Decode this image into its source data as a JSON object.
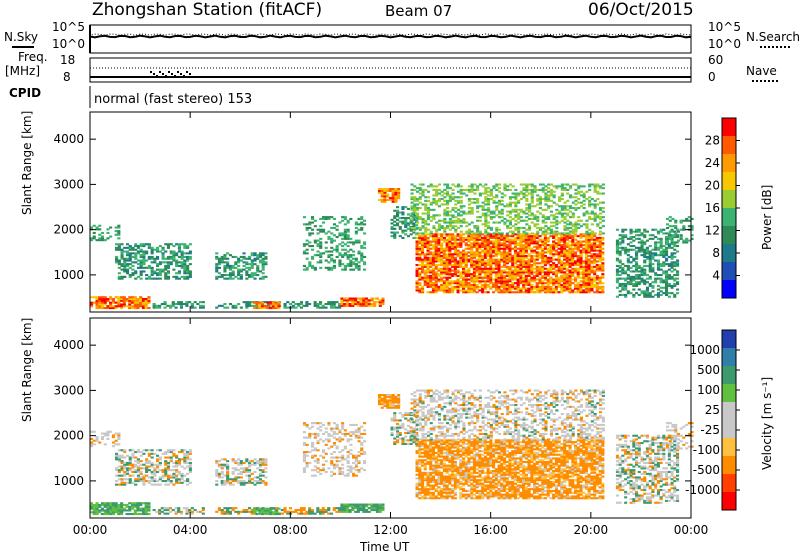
{
  "header": {
    "station": "Zhongshan Station (fitACF)",
    "beam": "Beam 07",
    "date": "06/Oct/2015"
  },
  "top_panels": {
    "nsky_label": "N.Sky",
    "nsky_ticks": [
      "10^5",
      "10^0"
    ],
    "nsearch_label": "N.Search",
    "nsearch_ticks": [
      "10^5",
      "10^0"
    ],
    "freq_label": "Freq.",
    "freq_unit": "[MHz]",
    "freq_ticks": [
      "18",
      "8"
    ],
    "nave_label": "Nave",
    "nave_ticks": [
      "60",
      "0"
    ],
    "cpid_label": "CPID",
    "cpid_text": "normal (fast stereo) 153"
  },
  "chart_data": [
    {
      "type": "heatmap",
      "panel": "power",
      "xlabel": "Time UT",
      "ylabel": "Slant Range [km]",
      "colorbar_label": "Power [dB]",
      "colorbar_ticks": [
        "28",
        "24",
        "20",
        "16",
        "12",
        "8",
        "4"
      ],
      "colorbar_colors": [
        "#ff0000",
        "#ff5a00",
        "#ff9a00",
        "#f7c800",
        "#9acd32",
        "#3cb371",
        "#2e8b57",
        "#1e7a8a",
        "#1f4fb4",
        "#0000ff"
      ],
      "x_ticks": [
        "00:00",
        "04:00",
        "08:00",
        "12:00",
        "16:00",
        "20:00",
        "00:00"
      ],
      "y_ticks": [
        "4000",
        "3000",
        "2000",
        "1000"
      ],
      "ylim": [
        180,
        4600
      ],
      "xlim_hours": [
        0,
        24
      ]
    },
    {
      "type": "heatmap",
      "panel": "velocity",
      "xlabel": "Time UT",
      "ylabel": "Slant Range [km]",
      "colorbar_label": "Velocity [m s⁻¹]",
      "colorbar_ticks": [
        "1000",
        "500",
        "100",
        "25",
        "-25",
        "-100",
        "-500",
        "-1000"
      ],
      "colorbar_colors": [
        "#2040b0",
        "#2f7fa8",
        "#3c9a6c",
        "#60c040",
        "#c8c8c8",
        "#c8c8c8",
        "#ffc040",
        "#ff8c00",
        "#ff4000",
        "#ff0000"
      ],
      "x_ticks": [
        "00:00",
        "04:00",
        "08:00",
        "12:00",
        "16:00",
        "20:00",
        "00:00"
      ],
      "y_ticks": [
        "4000",
        "3000",
        "2000",
        "1000"
      ],
      "ylim": [
        180,
        4600
      ],
      "xlim_hours": [
        0,
        24
      ]
    }
  ]
}
